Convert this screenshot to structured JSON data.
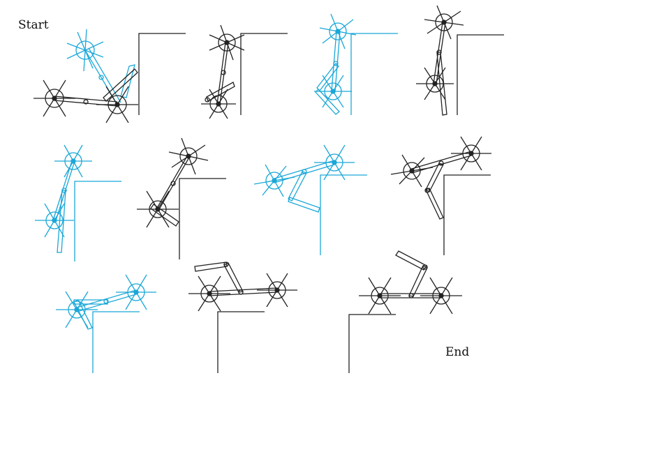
{
  "labels": {
    "start": "Start",
    "end": "End"
  },
  "colors": {
    "highlight": "#1aa7d8",
    "normal": "#222222",
    "background": "#ffffff"
  },
  "sequence": {
    "frame_count": 11,
    "highlighted_frames": [
      1,
      3,
      5,
      7,
      9
    ]
  }
}
